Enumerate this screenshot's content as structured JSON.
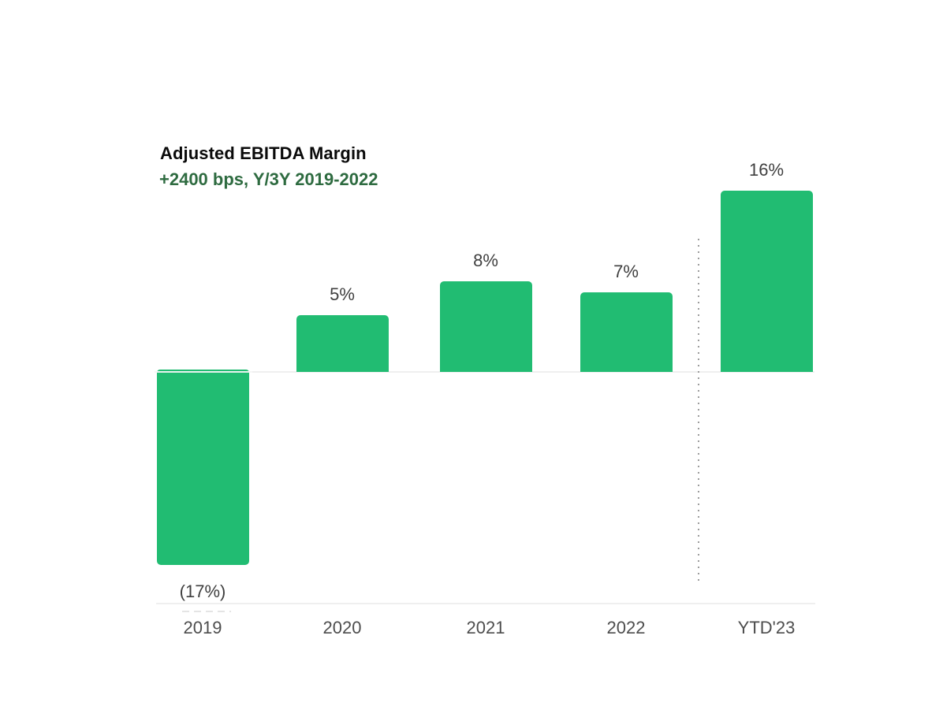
{
  "header": {
    "title": "Adjusted EBITDA Margin",
    "subtitle": "+2400 bps, Y/3Y 2019-2022"
  },
  "colors": {
    "bar": "#21BC72",
    "title": "#0A0A0A",
    "subtitle": "#2E6B40",
    "value_label": "#3F3F3F",
    "axis_label": "#4D4D4D",
    "grid": "#EFEFEF",
    "separator_dots": "#9C9C9C"
  },
  "chart_data": {
    "type": "bar",
    "title": "Adjusted EBITDA Margin",
    "subtitle": "+2400 bps, Y/3Y 2019-2022",
    "categories": [
      "2019",
      "2020",
      "2021",
      "2022",
      "YTD'23"
    ],
    "values": [
      -17,
      5,
      8,
      7,
      16
    ],
    "value_labels": [
      "(17%)",
      "5%",
      "8%",
      "7%",
      "16%"
    ],
    "unit": "%",
    "ylim": [
      -18,
      18
    ],
    "baseline": 0,
    "grid": false,
    "legend": false,
    "separator_after_category": "2022",
    "bar_color": "#21BC72",
    "negative_values_shown_in_parentheses": true
  }
}
